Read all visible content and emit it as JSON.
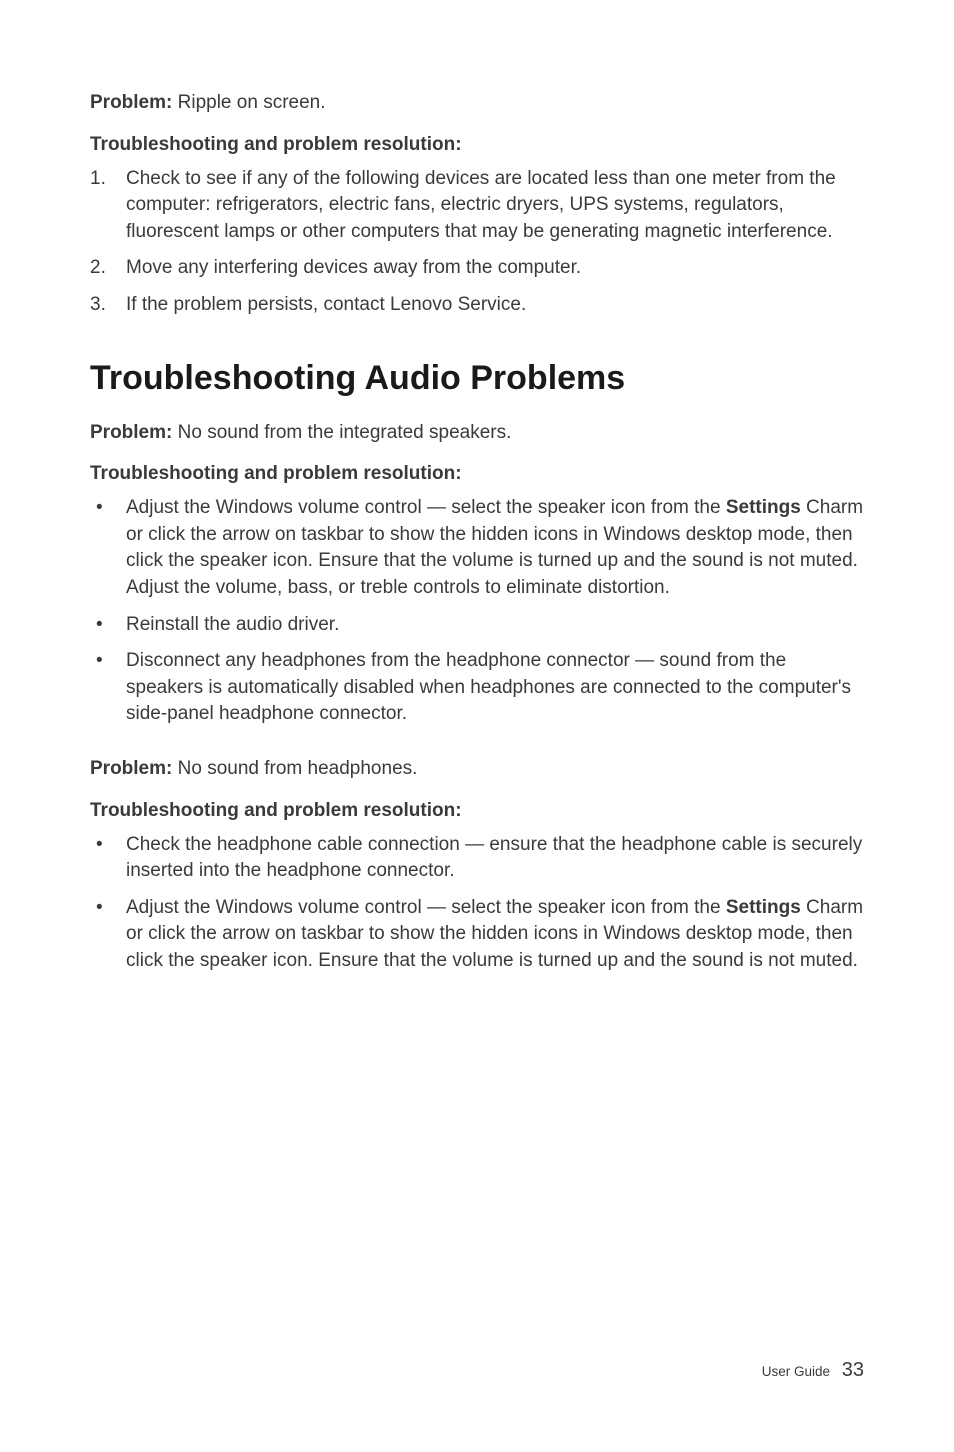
{
  "colors": {
    "page_bg": "#ffffff",
    "text": "#3a3a3a",
    "heading": "#1a1a1a"
  },
  "typography": {
    "body_fontsize_pt": 14,
    "heading_fontsize_pt": 26,
    "footer_label_fontsize_pt": 10,
    "footer_pagenum_fontsize_pt": 15,
    "font_family": "Helvetica"
  },
  "section1": {
    "problem_label": "Problem:",
    "problem_text": " Ripple on screen.",
    "resolution_heading": "Troubleshooting and problem resolution:",
    "steps": [
      {
        "num": "1.",
        "text": "Check to see if any of the following devices are located less than one meter from the computer: refrigerators, electric fans, electric dryers, UPS systems, regulators, fluorescent lamps or other computers that may be generating magnetic interference."
      },
      {
        "num": "2.",
        "text": "Move any interfering devices away from the computer."
      },
      {
        "num": "3.",
        "text": "If the problem persists, contact Lenovo Service."
      }
    ]
  },
  "section2": {
    "title": "Troubleshooting Audio Problems",
    "problem_label": "Problem:",
    "problem_text": " No sound from the integrated speakers.",
    "resolution_heading": "Troubleshooting and problem resolution:",
    "bullets": [
      {
        "pre": "Adjust the Windows volume control — select the speaker icon from the ",
        "bold": "Settings",
        "post": " Charm or click the arrow on taskbar to show the hidden icons in Windows desktop mode, then click the speaker icon. Ensure that the volume is turned up and the sound is not muted. Adjust the volume, bass, or treble controls to eliminate distortion."
      },
      {
        "pre": "Reinstall the audio driver.",
        "bold": "",
        "post": ""
      },
      {
        "pre": "Disconnect any headphones from the headphone connector — sound from the speakers is automatically disabled when headphones are connected to the computer's side-panel headphone connector.",
        "bold": "",
        "post": ""
      }
    ]
  },
  "section3": {
    "problem_label": "Problem:",
    "problem_text": " No sound from headphones.",
    "resolution_heading": "Troubleshooting and problem resolution:",
    "bullets": [
      {
        "pre": "Check the headphone cable connection — ensure that the headphone cable is securely inserted into the headphone connector.",
        "bold": "",
        "post": ""
      },
      {
        "pre": "Adjust the Windows volume control — select the speaker icon from the ",
        "bold": "Settings",
        "post": " Charm or click the arrow on taskbar to show the hidden icons in Windows desktop mode, then click the speaker icon. Ensure that the volume is turned up and the sound is not muted."
      }
    ]
  },
  "footer": {
    "label": "User Guide",
    "page": "33"
  }
}
